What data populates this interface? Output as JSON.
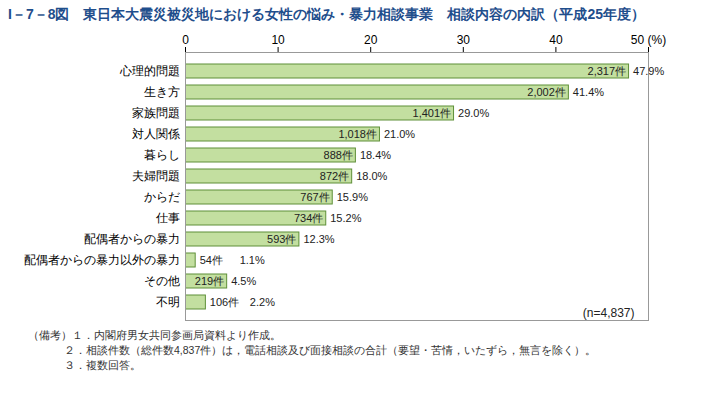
{
  "chart_data": {
    "type": "bar",
    "orientation": "horizontal",
    "title": "I－7－8図　東日本大震災被災地における女性の悩み・暴力相談事業　相談内容の内訳（平成25年度）",
    "categories": [
      "心理的問題",
      "生き方",
      "家族問題",
      "対人関係",
      "暮らし",
      "夫婦問題",
      "からだ",
      "仕事",
      "配偶者からの暴力",
      "配偶者からの暴力以外の暴力",
      "その他",
      "不明"
    ],
    "values": [
      47.9,
      41.4,
      29.0,
      21.0,
      18.4,
      18.0,
      15.9,
      15.2,
      12.3,
      1.1,
      4.5,
      2.2
    ],
    "value_labels": [
      "47.9%",
      "41.4%",
      "29.0%",
      "21.0%",
      "18.4%",
      "18.0%",
      "15.9%",
      "15.2%",
      "12.3%",
      "1.1%",
      "4.5%",
      "2.2%"
    ],
    "count_labels": [
      "2,317件",
      "2,002件",
      "1,401件",
      "1,018件",
      "888件",
      "872件",
      "767件",
      "734件",
      "593件",
      "54件",
      "219件",
      "106件"
    ],
    "color": "#c3dfa0",
    "xlim": [
      0,
      50
    ],
    "xticks": [
      0,
      10,
      20,
      30,
      40,
      {
        "value": 50,
        "label": "50 (%)"
      }
    ],
    "grid": false,
    "data_labels": true,
    "annotation": "(n=4,837)",
    "notes": [
      "（備考）１．内閣府男女共同参画局資料より作成。",
      "２．相談件数（総件数4,837件）は，電話相談及び面接相談の合計（要望・苦情，いたずら，無言を除く）。",
      "３．複数回答。"
    ]
  }
}
